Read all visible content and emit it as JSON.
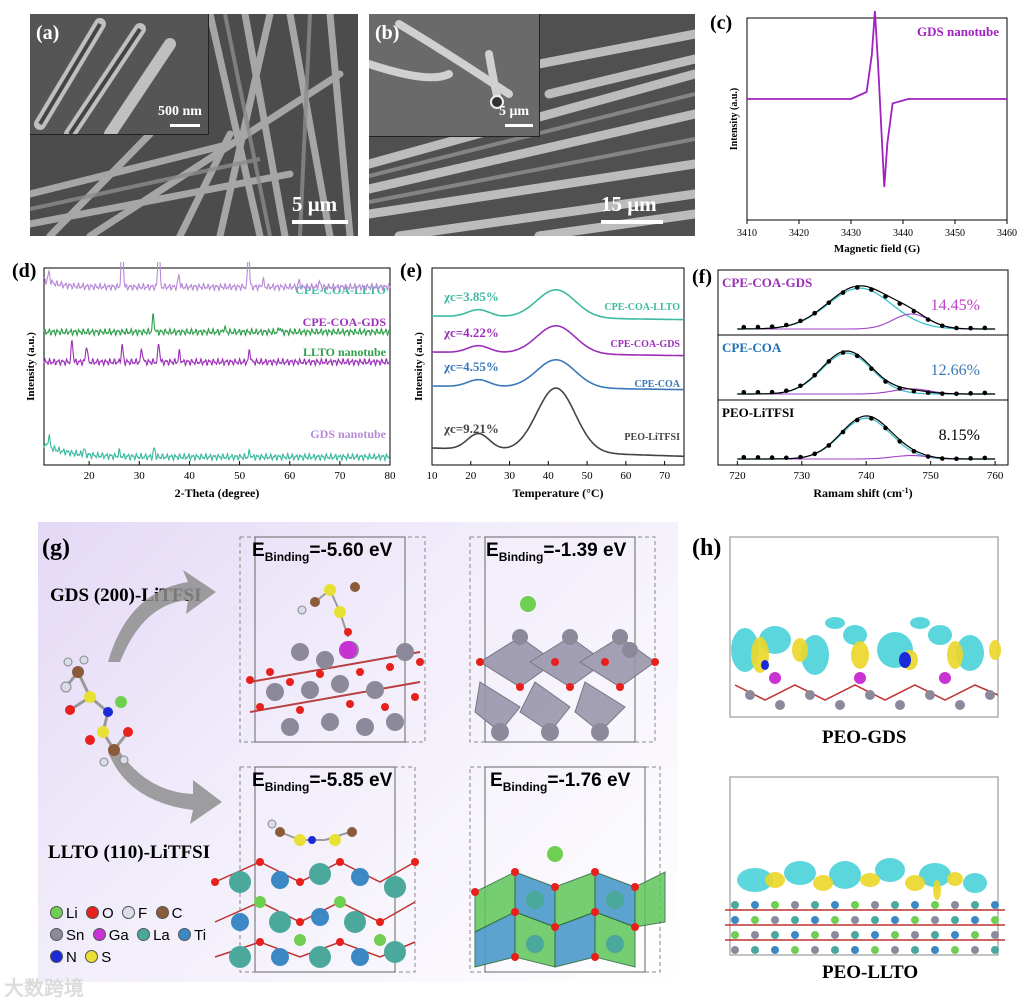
{
  "panels": {
    "a": {
      "letter": "(a)",
      "inset_scale": "500 nm",
      "main_scale": "5 μm"
    },
    "b": {
      "letter": "(b)",
      "inset_scale": "5 μm",
      "main_scale": "15 μm"
    },
    "c": {
      "letter": "(c)"
    },
    "d": {
      "letter": "(d)"
    },
    "e": {
      "letter": "(e)"
    },
    "f": {
      "letter": "(f)"
    },
    "g": {
      "letter": "(g)",
      "label_gds": "GDS (200)-LiTFSI",
      "label_llto": "LLTO (110)-LiTFSI",
      "e_prefix": "E",
      "e_sub": "Binding",
      "e1": "=-5.60 eV",
      "e2": "=-1.39 eV",
      "e3": "=-5.85 eV",
      "e4": "=-1.76 eV",
      "legend": [
        {
          "symbol": "Li",
          "color": "#6fcf52"
        },
        {
          "symbol": "O",
          "color": "#e8201c"
        },
        {
          "symbol": "F",
          "color": "#d8dde8"
        },
        {
          "symbol": "C",
          "color": "#8a5a3b"
        },
        {
          "symbol": "Sn",
          "color": "#8c8a9a"
        },
        {
          "symbol": "Ga",
          "color": "#c932d2"
        },
        {
          "symbol": "La",
          "color": "#4aa89c"
        },
        {
          "symbol": "Ti",
          "color": "#3c88c4"
        },
        {
          "symbol": "N",
          "color": "#1a2ad6"
        },
        {
          "symbol": "S",
          "color": "#e8e032"
        }
      ]
    },
    "h": {
      "letter": "(h)",
      "label_top": "PEO-GDS",
      "label_bottom": "PEO-LLTO"
    }
  },
  "watermark": "大数跨境",
  "chart_data": [
    {
      "id": "c",
      "type": "line",
      "xlabel": "Magnetic field (G)",
      "ylabel": "Intensity (a.u.)",
      "xlim": [
        3410,
        3460
      ],
      "xticks": [
        3410,
        3420,
        3430,
        3440,
        3450,
        3460
      ],
      "legend": "GDS nanotube",
      "color": "#a020c0",
      "x": [
        3410,
        3430,
        3433,
        3434,
        3434.6,
        3435.2,
        3435.8,
        3436.4,
        3437,
        3438,
        3441,
        3460
      ],
      "y": [
        0,
        0,
        0.08,
        0.5,
        1,
        0.4,
        -0.3,
        -1,
        -0.5,
        -0.05,
        0,
        0
      ]
    },
    {
      "id": "d",
      "type": "line",
      "xlabel": "2-Theta (degree)",
      "ylabel": "Intensity (a.u.)",
      "xlim": [
        11,
        80
      ],
      "xticks": [
        20,
        30,
        40,
        50,
        60,
        70,
        80
      ],
      "series": [
        {
          "name": "CPE-COA-LLTO",
          "color": "#3cb9a0",
          "offset": 3,
          "peaks": [
            [
              12,
              0.25
            ],
            [
              19,
              0.12
            ],
            [
              26,
              0.1
            ],
            [
              33,
              0.18
            ],
            [
              52,
              0.1
            ]
          ]
        },
        {
          "name": "CPE-COA-GDS",
          "color": "#9b2fb8",
          "offset": 2,
          "peaks": [
            [
              16.6,
              0.45
            ],
            [
              19.5,
              0.35
            ],
            [
              26.6,
              0.35
            ],
            [
              30.5,
              0.28
            ],
            [
              33.9,
              0.4
            ],
            [
              38,
              0.2
            ],
            [
              52,
              0.25
            ]
          ]
        },
        {
          "name": "LLTO nanotube",
          "color": "#2e9e4a",
          "offset": 1,
          "peaks": [
            [
              32.8,
              0.35
            ],
            [
              47,
              0.1
            ],
            [
              58,
              0.1
            ]
          ]
        },
        {
          "name": "GDS nanotube",
          "color": "#b88ad8",
          "offset": 0,
          "peaks": [
            [
              12,
              0.2
            ],
            [
              26.6,
              1.5
            ],
            [
              33.9,
              1.2
            ],
            [
              37.9,
              0.25
            ],
            [
              51.8,
              0.85
            ],
            [
              54.7,
              0.15
            ],
            [
              61.9,
              0.12
            ],
            [
              65.9,
              0.1
            ]
          ]
        }
      ]
    },
    {
      "id": "e",
      "type": "line",
      "xlabel": "Temperature (°C)",
      "ylabel": "Intensity (a.u.)",
      "xlim": [
        10,
        75
      ],
      "xticks": [
        10,
        20,
        30,
        40,
        50,
        60,
        70
      ],
      "series": [
        {
          "name": "CPE-COA-LLTO",
          "color": "#3cb9a0",
          "chi": "χc=3.85%"
        },
        {
          "name": "CPE-COA-GDS",
          "color": "#9b2fb8",
          "chi": "χc=4.22%"
        },
        {
          "name": "CPE-COA",
          "color": "#3a78b8",
          "chi": "χc=4.55%"
        },
        {
          "name": "PEO-LiTFSI",
          "color": "#444444",
          "chi": "χc=9.21%"
        }
      ]
    },
    {
      "id": "f",
      "type": "scatter",
      "xlabel": "Ramam shift (cm-1)",
      "xlim": [
        717,
        762
      ],
      "xticks": [
        720,
        730,
        740,
        750,
        760
      ],
      "series": [
        {
          "name": "CPE-COA-GDS",
          "name_color": "#9b2fb8",
          "value": "14.45%",
          "value_color": "#c040c8"
        },
        {
          "name": "CPE-COA",
          "name_color": "#1f6fb8",
          "value": "12.66%",
          "value_color": "#3a78b8"
        },
        {
          "name": "PEO-LiTFSI",
          "name_color": "#000000",
          "value": "8.15%",
          "value_color": "#000000"
        }
      ]
    }
  ]
}
